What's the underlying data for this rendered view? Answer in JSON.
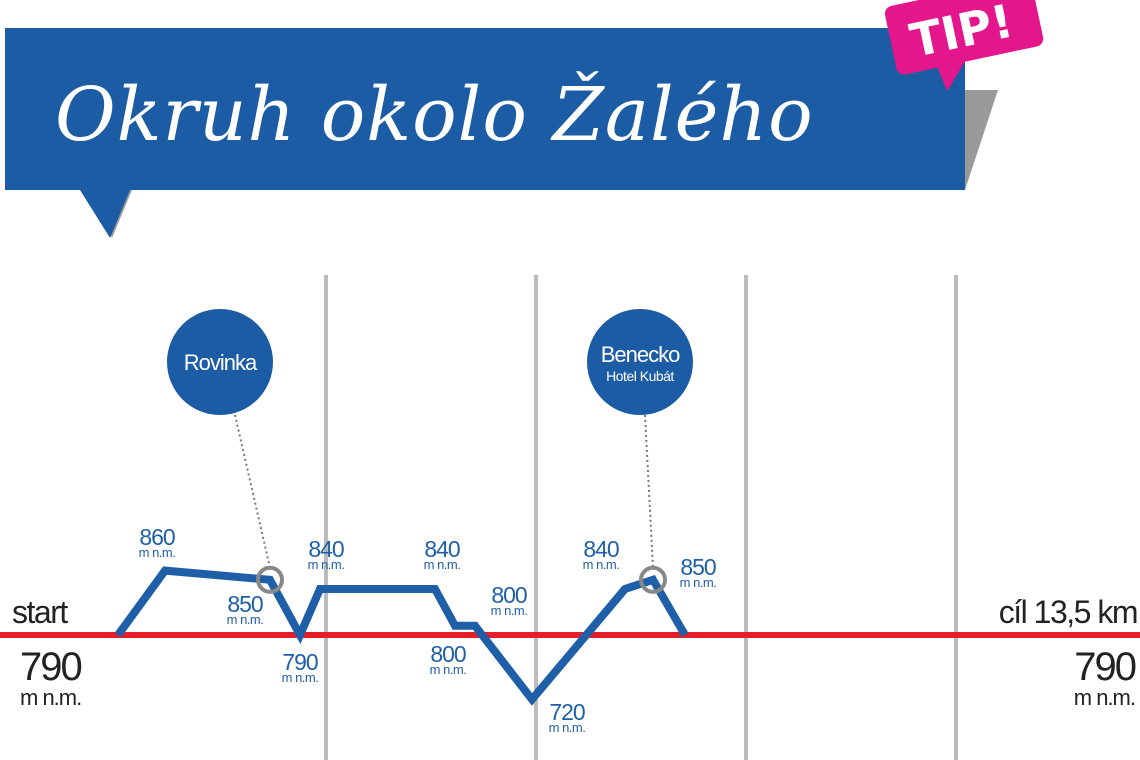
{
  "title": "Okruh okolo Žalého",
  "badge": "TIP!",
  "chart_data": {
    "type": "line",
    "start_label": "start",
    "end_label": "cíl 13,5 km",
    "unit": "m n.m.",
    "values": [
      790,
      860,
      850,
      790,
      840,
      840,
      800,
      800,
      720,
      840,
      850,
      790
    ],
    "color": "#1f5fa8",
    "waypoints": [
      {
        "name": "Rovinka"
      },
      {
        "name": "Benecko",
        "subtitle": "Hotel Kubát"
      }
    ]
  }
}
